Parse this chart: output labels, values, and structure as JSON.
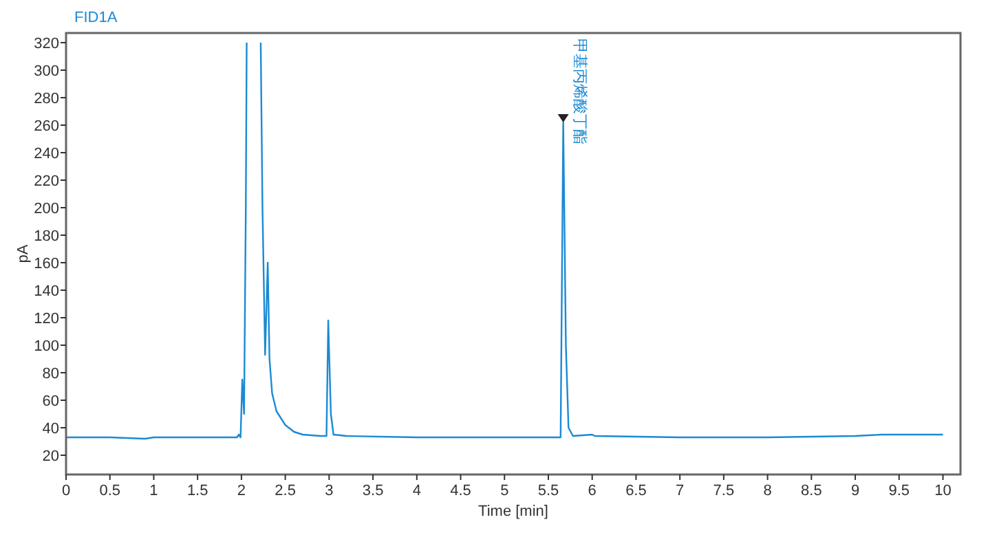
{
  "chart_data": {
    "type": "line",
    "title": "FID1A",
    "xlabel": "Time [min]",
    "ylabel": "pA",
    "x": [
      0,
      0.5,
      0.9,
      1,
      1.5,
      1.95,
      1.97,
      1.99,
      2.01,
      2.03,
      2.05,
      2.06,
      2.15,
      2.22,
      2.24,
      2.27,
      2.3,
      2.32,
      2.35,
      2.4,
      2.5,
      2.6,
      2.7,
      2.9,
      2.97,
      2.99,
      3.02,
      3.05,
      3.2,
      4,
      5,
      5.6,
      5.64,
      5.67,
      5.7,
      5.73,
      5.78,
      6.0,
      6.03,
      7,
      8,
      9,
      9.3,
      10
    ],
    "series": [
      {
        "color": "#1a8ad4",
        "values": [
          33,
          33,
          32,
          33,
          33,
          33,
          35,
          33,
          75,
          50,
          200,
          320,
          null,
          320,
          200,
          93,
          160,
          90,
          65,
          52,
          42,
          37,
          35,
          34,
          34,
          118,
          50,
          35,
          34,
          33,
          33,
          33,
          33,
          262,
          100,
          40,
          34,
          35,
          34,
          33,
          33,
          34,
          35,
          35
        ]
      }
    ],
    "annotations": [
      {
        "text": "甲基丙烯酸丁酯",
        "x": 5.67,
        "y": 262
      }
    ],
    "xlim": [
      0,
      10.2
    ],
    "ylim": [
      6,
      327
    ],
    "xticks": [
      0,
      0.5,
      1,
      1.5,
      2,
      2.5,
      3,
      3.5,
      4,
      4.5,
      5,
      5.5,
      6,
      6.5,
      7,
      7.5,
      8,
      8.5,
      9,
      9.5,
      10
    ],
    "yticks": [
      20,
      40,
      60,
      80,
      100,
      120,
      140,
      160,
      180,
      200,
      220,
      240,
      260,
      280,
      300,
      320
    ],
    "grid": false
  }
}
